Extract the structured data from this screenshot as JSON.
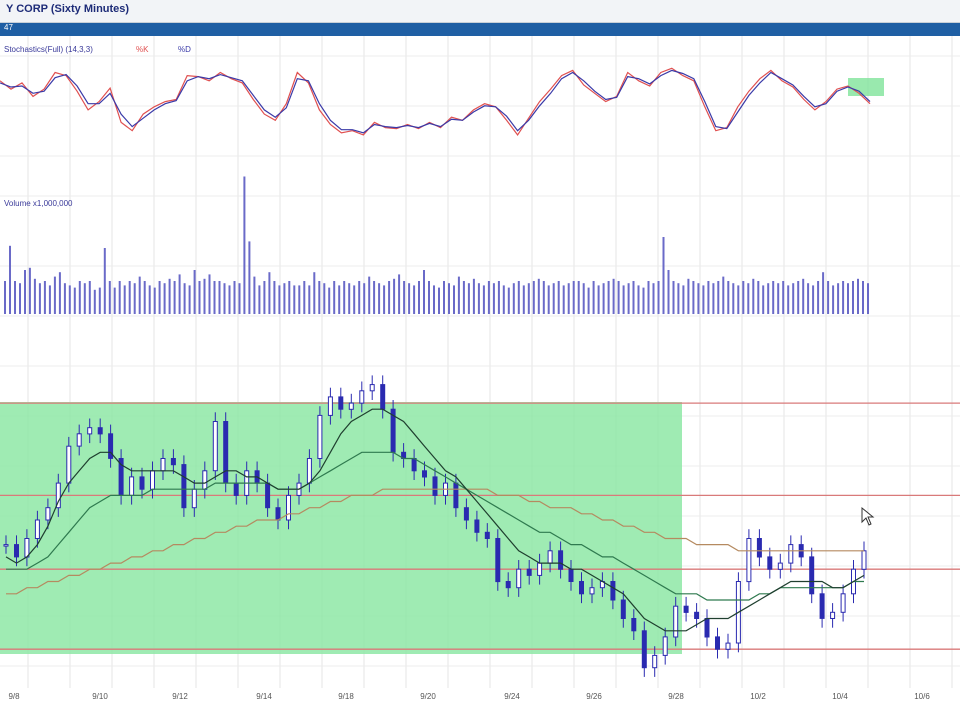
{
  "window": {
    "title": "Y CORP (Sixty Minutes)",
    "subbar": "47"
  },
  "colors": {
    "k": "#e05050",
    "d": "#3a3aa8",
    "candle": "#2a2ab0",
    "zone": "#7fe39a",
    "level": "#d97a7a",
    "ma_slow": "#b58a60",
    "ma_mid": "#2f7a4f",
    "ma_fast": "#1f3f2f"
  },
  "chart_data": [
    {
      "type": "line",
      "legend_title": "Stochastics(Full) (14,3,3)",
      "series": [
        {
          "name": "%K",
          "values": [
            80,
            72,
            78,
            65,
            72,
            88,
            85,
            70,
            52,
            60,
            73,
            40,
            32,
            48,
            55,
            60,
            62,
            85,
            84,
            80,
            88,
            82,
            78,
            62,
            48,
            42,
            58,
            88,
            78,
            52,
            38,
            30,
            32,
            28,
            40,
            35,
            34,
            38,
            34,
            40,
            35,
            45,
            42,
            52,
            58,
            55,
            42,
            28,
            44,
            60,
            72,
            85,
            90,
            76,
            68,
            60,
            65,
            88,
            80,
            75,
            88,
            92,
            85,
            80,
            55,
            32,
            35,
            55,
            70,
            82,
            90,
            80,
            74,
            62,
            52,
            60,
            72,
            75,
            68,
            58
          ]
        },
        {
          "name": "%D",
          "values": [
            78,
            74,
            75,
            68,
            70,
            83,
            86,
            75,
            58,
            58,
            68,
            48,
            36,
            44,
            52,
            58,
            61,
            80,
            84,
            82,
            86,
            83,
            80,
            66,
            52,
            45,
            54,
            82,
            80,
            58,
            42,
            33,
            33,
            30,
            38,
            36,
            35,
            37,
            35,
            39,
            36,
            43,
            42,
            50,
            56,
            55,
            46,
            32,
            42,
            56,
            68,
            82,
            88,
            80,
            70,
            62,
            64,
            84,
            82,
            77,
            85,
            90,
            87,
            82,
            60,
            36,
            34,
            50,
            66,
            78,
            88,
            82,
            76,
            65,
            55,
            58,
            70,
            74,
            70,
            60
          ]
        }
      ]
    },
    {
      "type": "bar",
      "legend_title": "Volume x1,000,000",
      "values": [
        0.3,
        0.62,
        0.3,
        0.28,
        0.4,
        0.42,
        0.32,
        0.28,
        0.3,
        0.26,
        0.34,
        0.38,
        0.28,
        0.26,
        0.24,
        0.3,
        0.28,
        0.3,
        0.22,
        0.24,
        0.6,
        0.3,
        0.24,
        0.3,
        0.26,
        0.3,
        0.28,
        0.34,
        0.3,
        0.26,
        0.24,
        0.3,
        0.28,
        0.32,
        0.3,
        0.36,
        0.28,
        0.26,
        0.4,
        0.3,
        0.32,
        0.36,
        0.3,
        0.3,
        0.28,
        0.26,
        0.3,
        0.28,
        1.25,
        0.66,
        0.34,
        0.26,
        0.3,
        0.38,
        0.3,
        0.26,
        0.28,
        0.3,
        0.26,
        0.26,
        0.3,
        0.26,
        0.38,
        0.3,
        0.28,
        0.24,
        0.3,
        0.26,
        0.3,
        0.28,
        0.26,
        0.3,
        0.28,
        0.34,
        0.3,
        0.28,
        0.26,
        0.3,
        0.32,
        0.36,
        0.3,
        0.28,
        0.26,
        0.3,
        0.4,
        0.3,
        0.26,
        0.24,
        0.3,
        0.28,
        0.26,
        0.34,
        0.3,
        0.28,
        0.32,
        0.28,
        0.26,
        0.3,
        0.28,
        0.3,
        0.26,
        0.24,
        0.28,
        0.3,
        0.26,
        0.28,
        0.3,
        0.32,
        0.3,
        0.26,
        0.28,
        0.3,
        0.26,
        0.28,
        0.3,
        0.3,
        0.28,
        0.24,
        0.3,
        0.26,
        0.28,
        0.3,
        0.32,
        0.3,
        0.26,
        0.28,
        0.3,
        0.26,
        0.24,
        0.3,
        0.28,
        0.3,
        0.7,
        0.4,
        0.3,
        0.28,
        0.26,
        0.32,
        0.3,
        0.28,
        0.26,
        0.3,
        0.28,
        0.3,
        0.34,
        0.3,
        0.28,
        0.26,
        0.3,
        0.28,
        0.32,
        0.3,
        0.26,
        0.28,
        0.3,
        0.28,
        0.3,
        0.26,
        0.28,
        0.3,
        0.32,
        0.28,
        0.26,
        0.3,
        0.38,
        0.3,
        0.26,
        0.28,
        0.3,
        0.28,
        0.3,
        0.32,
        0.3,
        0.28
      ]
    },
    {
      "type": "line",
      "x_labels": [
        "9/8",
        "9/10",
        "9/12",
        "9/14",
        "9/18",
        "9/20",
        "9/24",
        "9/26",
        "9/28",
        "10/2",
        "10/4",
        "10/6"
      ],
      "price_close": [
        52,
        50,
        53,
        56,
        58,
        62,
        68,
        70,
        71,
        70,
        66,
        60,
        63,
        61,
        64,
        66,
        65,
        58,
        61,
        64,
        72,
        62,
        60,
        64,
        62,
        58,
        56,
        60,
        62,
        66,
        73,
        76,
        74,
        75,
        77,
        78,
        74,
        67,
        66,
        64,
        63,
        60,
        62,
        58,
        56,
        54,
        53,
        46,
        45,
        48,
        47,
        49,
        51,
        48,
        46,
        44,
        45,
        46,
        43,
        40,
        38,
        32,
        34,
        37,
        42,
        41,
        40,
        37,
        35,
        36,
        46,
        53,
        50,
        48,
        49,
        52,
        50,
        44,
        40,
        41,
        44,
        48,
        51
      ],
      "ma_fast": [
        50,
        49,
        50,
        52,
        55,
        59,
        62,
        64,
        66,
        67,
        67,
        65,
        64,
        64,
        64,
        64,
        64,
        63,
        62,
        62,
        63,
        64,
        64,
        63,
        63,
        62,
        61,
        61,
        61,
        62,
        64,
        67,
        70,
        72,
        73,
        74,
        74,
        73,
        72,
        70,
        68,
        66,
        64,
        63,
        61,
        59,
        57,
        55,
        53,
        51,
        50,
        49,
        49,
        49,
        48,
        48,
        47,
        46,
        45,
        44,
        42,
        40,
        39,
        38,
        38,
        38,
        39,
        40,
        40,
        40,
        41,
        42,
        43,
        44,
        45,
        46,
        46,
        46,
        46,
        45,
        45,
        46,
        47
      ],
      "ma_mid": [
        48,
        48,
        48,
        49,
        50,
        52,
        54,
        56,
        58,
        59,
        60,
        60,
        60,
        60,
        61,
        61,
        61,
        61,
        61,
        61,
        62,
        62,
        62,
        62,
        62,
        62,
        61,
        61,
        61,
        62,
        63,
        64,
        65,
        66,
        67,
        67,
        67,
        67,
        66,
        66,
        65,
        64,
        63,
        62,
        61,
        60,
        59,
        58,
        57,
        56,
        55,
        54,
        54,
        53,
        52,
        52,
        51,
        50,
        50,
        49,
        48,
        47,
        46,
        45,
        44,
        44,
        44,
        43,
        43,
        43,
        43,
        43,
        44,
        44,
        45,
        45,
        45,
        45,
        45,
        45,
        45,
        46,
        46
      ],
      "ma_slow": [
        44,
        44,
        45,
        45,
        46,
        46,
        47,
        47,
        48,
        48,
        49,
        49,
        50,
        50,
        51,
        51,
        52,
        52,
        53,
        53,
        54,
        54,
        55,
        55,
        56,
        56,
        56,
        57,
        57,
        58,
        58,
        59,
        59,
        60,
        60,
        60,
        61,
        61,
        61,
        61,
        61,
        61,
        61,
        61,
        61,
        61,
        61,
        60,
        60,
        60,
        59,
        59,
        58,
        58,
        58,
        57,
        57,
        56,
        56,
        55,
        55,
        54,
        54,
        53,
        53,
        53,
        52,
        52,
        52,
        52,
        51,
        51,
        51,
        51,
        51,
        51,
        51,
        51,
        51,
        51,
        51,
        51,
        51
      ],
      "levels": [
        75,
        60,
        48,
        35
      ]
    }
  ]
}
